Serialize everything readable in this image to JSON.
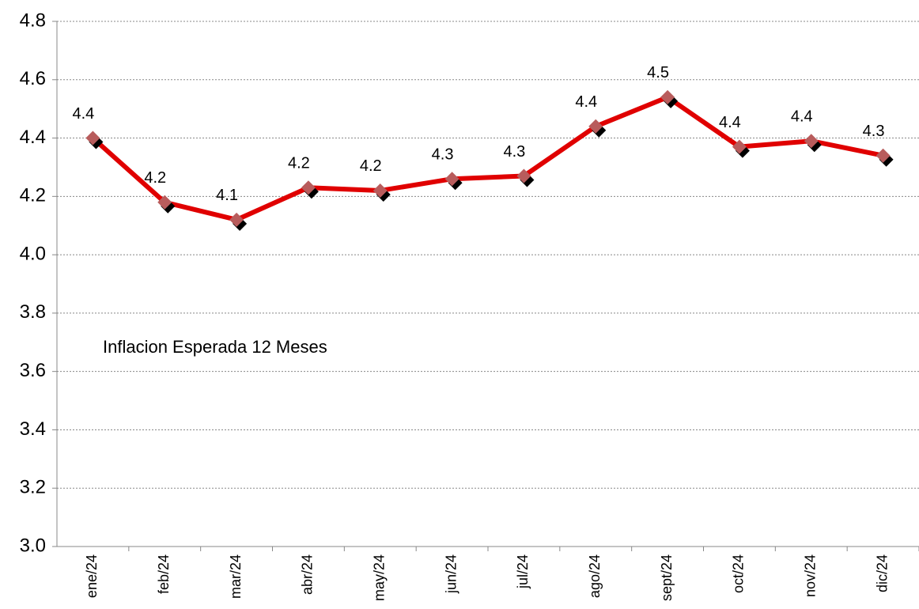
{
  "chart_data": {
    "type": "line",
    "annotation": "Inflacion Esperada 12 Meses",
    "categories": [
      "ene/24",
      "feb/24",
      "mar/24",
      "abr/24",
      "may/24",
      "jun/24",
      "jul/24",
      "ago/24",
      "sept/24",
      "oct/24",
      "nov/24",
      "dic/24"
    ],
    "series": [
      {
        "color": "#e00000",
        "marker_color": "#b85c5c",
        "values": [
          4.4,
          4.18,
          4.12,
          4.23,
          4.22,
          4.26,
          4.27,
          4.44,
          4.54,
          4.37,
          4.39,
          4.34
        ],
        "value_labels": [
          "4.4",
          "4.2",
          "4.1",
          "4.2",
          "4.2",
          "4.3",
          "4.3",
          "4.4",
          "4.5",
          "4.4",
          "4.4",
          "4.3"
        ]
      }
    ],
    "ylim": [
      3.0,
      4.8
    ],
    "yticks": [
      {
        "value": 3.0,
        "label": "3.0"
      },
      3.2,
      3.4,
      3.6,
      3.8,
      {
        "value": 4.0,
        "label": "4.0"
      },
      4.2,
      4.4,
      4.6,
      4.8
    ],
    "grid": true
  }
}
